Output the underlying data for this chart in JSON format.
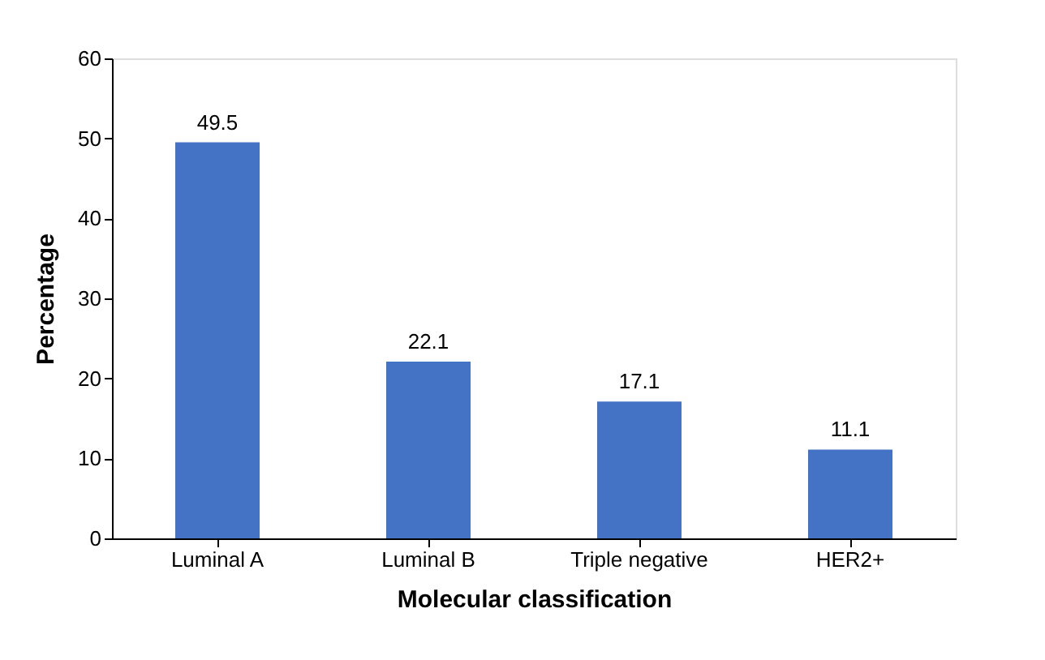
{
  "chart_data": {
    "type": "bar",
    "xlabel": "Molecular classification",
    "ylabel": "Percentage",
    "categories": [
      "Luminal A",
      "Luminal B",
      "Triple negative",
      "HER2+"
    ],
    "values": [
      49.5,
      22.1,
      17.1,
      11.1
    ],
    "color": "#4472c4",
    "ylim": [
      0,
      60
    ],
    "yticks": [
      0,
      10,
      20,
      30,
      40,
      50,
      60
    ],
    "grid": false,
    "data_labels": true
  }
}
